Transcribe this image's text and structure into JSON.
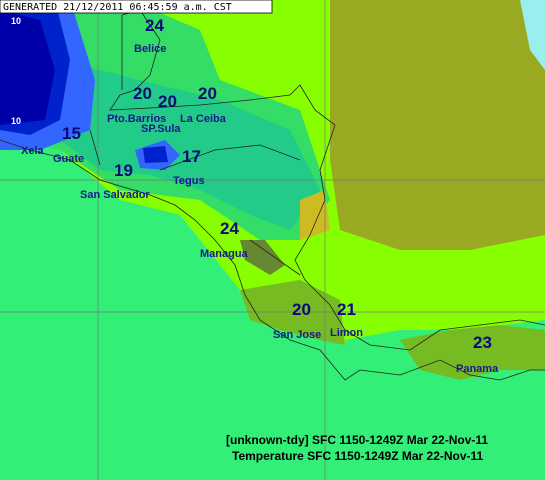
{
  "header": "GENERATED 21/12/2011 06:45:59 a.m. CST",
  "contour_labels": [
    10,
    10
  ],
  "cities": [
    "Belice",
    "Pto.Barrios",
    "La Ceiba",
    "SP.Sula",
    "Xela",
    "Guate",
    "San Salvador",
    "Tegus",
    "Managua",
    "San Jose",
    "Limon",
    "Panama"
  ],
  "temperatures": [
    24,
    20,
    20,
    20,
    15,
    19,
    17,
    24,
    20,
    21,
    23
  ],
  "footer": [
    "[unknown-tdy] SFC 1150-1249Z Mar 22-Nov-11",
    "Temperature SFC 1150-1249Z Mar 22-Nov-11"
  ]
}
